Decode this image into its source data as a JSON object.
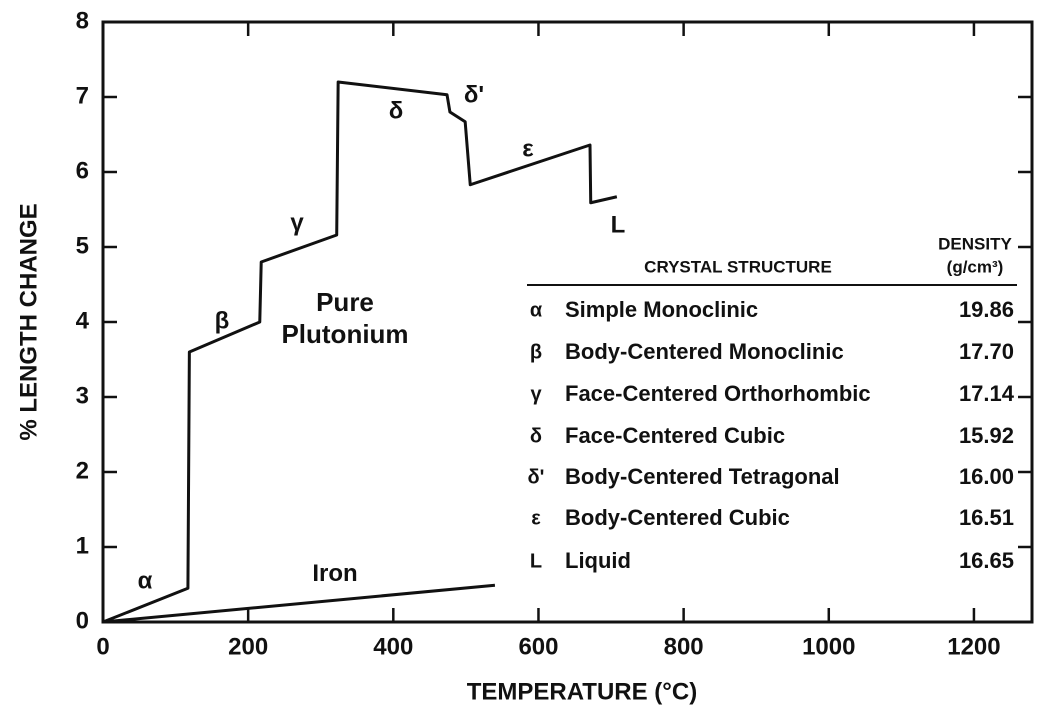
{
  "chart_data": {
    "type": "line",
    "x_label": "TEMPERATURE (°C)",
    "y_label": "% LENGTH CHANGE",
    "xlim": [
      0,
      1280
    ],
    "ylim": [
      0,
      8
    ],
    "xticks": [
      0,
      200,
      400,
      600,
      800,
      1000,
      1200
    ],
    "yticks": [
      0,
      1,
      2,
      3,
      4,
      5,
      6,
      7,
      8
    ],
    "series": [
      {
        "name": "Pure Plutonium",
        "color": "#111111",
        "x": [
          0,
          117,
          119,
          216,
          218,
          322,
          324,
          474,
          478,
          499,
          506,
          671,
          672,
          708
        ],
        "values": [
          0,
          0.45,
          3.6,
          4.0,
          4.8,
          5.16,
          7.2,
          7.03,
          6.8,
          6.67,
          5.83,
          6.36,
          5.59,
          5.67
        ]
      },
      {
        "name": "Iron",
        "color": "#111111",
        "x": [
          0,
          540
        ],
        "values": [
          0,
          0.49
        ]
      }
    ],
    "annotations": [
      "α",
      "β",
      "γ",
      "δ",
      "δ'",
      "ε",
      "L"
    ]
  },
  "table": {
    "header": [
      "CRYSTAL STRUCTURE",
      "DENSITY",
      "(g/cm³)"
    ],
    "rows": [
      [
        "α",
        "Simple Monoclinic",
        "19.86"
      ],
      [
        "β",
        "Body-Centered Monoclinic",
        "17.70"
      ],
      [
        "γ",
        "Face-Centered Orthorhombic",
        "17.14"
      ],
      [
        "δ",
        "Face-Centered Cubic",
        "15.92"
      ],
      [
        "δ'",
        "Body-Centered Tetragonal",
        "16.00"
      ],
      [
        "ε",
        "Body-Centered Cubic",
        "16.51"
      ],
      [
        "L",
        "Liquid",
        "16.65"
      ]
    ]
  }
}
